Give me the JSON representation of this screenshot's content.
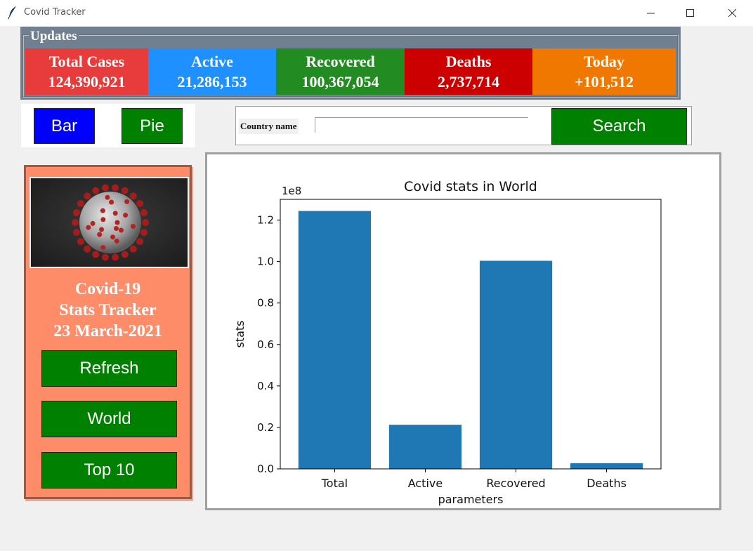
{
  "window": {
    "title": "Covid Tracker"
  },
  "updates": {
    "legend": "Updates",
    "stats": [
      {
        "label": "Total Cases",
        "value": "124,390,921",
        "color": "#e83b3b"
      },
      {
        "label": "Active",
        "value": "21,286,153",
        "color": "#1e90ff"
      },
      {
        "label": "Recovered",
        "value": "100,367,054",
        "color": "#228b22"
      },
      {
        "label": "Deaths",
        "value": "2,737,714",
        "color": "#cc0000"
      },
      {
        "label": "Today",
        "value": "+101,512",
        "color": "#f07800"
      }
    ]
  },
  "chart_buttons": {
    "bar": "Bar",
    "pie": "Pie"
  },
  "search": {
    "label": "Country name",
    "value": "",
    "button": "Search"
  },
  "side": {
    "line1": "Covid-19",
    "line2": "Stats Tracker",
    "line3": "23 March-2021",
    "refresh": "Refresh",
    "world": "World",
    "top10": "Top 10"
  },
  "chart_data": {
    "type": "bar",
    "title": "Covid stats in World",
    "xlabel": "parameters",
    "ylabel": "stats",
    "offset_label": "1e8",
    "categories": [
      "Total",
      "Active",
      "Recovered",
      "Deaths"
    ],
    "values": [
      124390921,
      21286153,
      100367054,
      2737714
    ],
    "ylim": [
      0,
      130000000
    ],
    "yticks": [
      0.0,
      0.2,
      0.4,
      0.6,
      0.8,
      1.0,
      1.2
    ],
    "color": "#1f77b4",
    "grid": false
  }
}
